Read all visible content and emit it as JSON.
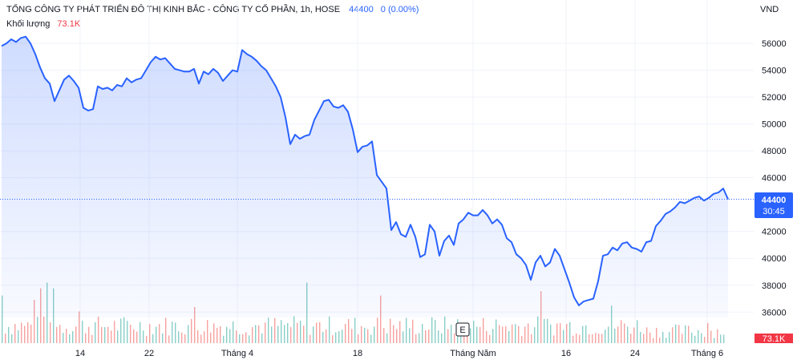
{
  "header": {
    "title": "TỔNG CÔNG TY PHÁT TRIỂN ĐÔ THỊ KINH BẮC - CÔNG TY CỔ PHẦN, 1h, HOSE",
    "price": "44400",
    "change": "0 (0.00%)",
    "volume_label": "Khối lượng",
    "volume_value": "73.1K"
  },
  "currency": "VND",
  "price_badge": {
    "price": "44400",
    "countdown": "30:45"
  },
  "volume_badge": "73.1K",
  "events_marker": "E",
  "colors": {
    "line": "#2962ff",
    "up_volume": "#26a69a",
    "down_volume": "#ef5350",
    "badge_price": "#2962ff",
    "badge_volume": "#f23645"
  },
  "chart_data": {
    "type": "area",
    "x_ticks": [
      "14",
      "22",
      "Tháng 4",
      "18",
      "Tháng Năm",
      "16",
      "24",
      "Tháng 6"
    ],
    "y_ticks": [
      "56000",
      "54000",
      "52000",
      "50000",
      "48000",
      "46000",
      "42000",
      "40000",
      "38000",
      "36000"
    ],
    "ylim": [
      35000,
      57200
    ],
    "last_price": 44400,
    "price": [
      55800,
      56000,
      56300,
      56100,
      56400,
      56500,
      56000,
      55200,
      54200,
      53400,
      53000,
      51700,
      52500,
      53300,
      53600,
      53200,
      52700,
      51200,
      51000,
      51100,
      52800,
      52600,
      52700,
      52500,
      52900,
      52800,
      53400,
      53100,
      53300,
      53400,
      54000,
      54600,
      55000,
      54800,
      54900,
      54500,
      54100,
      54000,
      53900,
      53900,
      54100,
      53000,
      53900,
      53700,
      54100,
      53800,
      53200,
      53600,
      54000,
      53900,
      55500,
      55200,
      55000,
      54700,
      54300,
      54000,
      53400,
      52800,
      52000,
      50500,
      48500,
      49200,
      48900,
      49100,
      49200,
      50300,
      51000,
      51700,
      51800,
      51300,
      51200,
      51400,
      50900,
      49600,
      47900,
      48300,
      48400,
      48700,
      46200,
      45700,
      45200,
      42100,
      42700,
      41800,
      41600,
      42500,
      41600,
      40100,
      40300,
      42500,
      42000,
      40200,
      41300,
      41700,
      41000,
      42600,
      42900,
      43400,
      43200,
      43200,
      43600,
      43200,
      42600,
      42900,
      42500,
      41500,
      41200,
      40300,
      40000,
      39500,
      38400,
      39700,
      40200,
      39400,
      39700,
      40700,
      40200,
      39200,
      38200,
      37100,
      36500,
      36800,
      36900,
      37000,
      38300,
      40200,
      40300,
      40800,
      40600,
      41100,
      41200,
      40800,
      40700,
      40500,
      41200,
      41300,
      42400,
      42800,
      43300,
      43500,
      43800,
      44200,
      44100,
      44300,
      44500,
      44600,
      44300,
      44500,
      44800,
      44900,
      45200,
      44400
    ],
    "volume": [
      "u",
      0.4,
      "d",
      0.33,
      "u",
      0.22,
      "d",
      0.46,
      "u",
      0.3,
      "d",
      0.38,
      "u",
      0.43,
      "d",
      0.49,
      "u",
      0.5,
      "d",
      0.26,
      "u",
      0.24,
      "d",
      0.18
    ]
  }
}
